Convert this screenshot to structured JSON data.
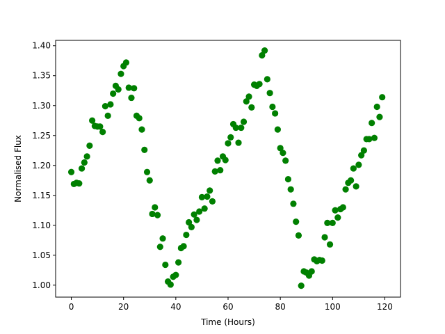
{
  "chart_data": {
    "type": "scatter",
    "xlabel": "Time (Hours)",
    "ylabel": "Normalised Flux",
    "xlim": [
      -6,
      126
    ],
    "ylim": [
      0.98,
      1.409
    ],
    "xticks": [
      0,
      20,
      40,
      60,
      80,
      100,
      120
    ],
    "yticks": [
      1.0,
      1.05,
      1.1,
      1.15,
      1.2,
      1.25,
      1.3,
      1.35,
      1.4
    ],
    "xtick_labels": [
      "0",
      "20",
      "40",
      "60",
      "80",
      "100",
      "120"
    ],
    "ytick_labels": [
      "1.00",
      "1.05",
      "1.10",
      "1.15",
      "1.20",
      "1.25",
      "1.30",
      "1.35",
      "1.40"
    ],
    "grid": false,
    "marker_color": "#008000",
    "series": [
      {
        "x": [
          0,
          1,
          2,
          3,
          4,
          5,
          6,
          7,
          8,
          9,
          10,
          11,
          12,
          13,
          14,
          15,
          16,
          17,
          18,
          19,
          20,
          21,
          22,
          23,
          24,
          25,
          26,
          27,
          28,
          29,
          30,
          31,
          32,
          33,
          34,
          35,
          36,
          37,
          38,
          39,
          40,
          41,
          42,
          43,
          44,
          45,
          46,
          47,
          48,
          49,
          50,
          51,
          52,
          53,
          54,
          55,
          56,
          57,
          58,
          59,
          60,
          61,
          62,
          63,
          64,
          65,
          66,
          67,
          68,
          69,
          70,
          71,
          72,
          73,
          74,
          75,
          76,
          77,
          78,
          79,
          80,
          81,
          82,
          83,
          84,
          85,
          86,
          87,
          88,
          89,
          90,
          91,
          92,
          93,
          94,
          95,
          96,
          97,
          98,
          99,
          100,
          101,
          102,
          103,
          104,
          105,
          106,
          107,
          108,
          109,
          110,
          111,
          112,
          113,
          114,
          115,
          116,
          117,
          118,
          119
        ],
        "y": [
          1.189,
          1.169,
          1.171,
          1.17,
          1.195,
          1.205,
          1.215,
          1.233,
          1.275,
          1.266,
          1.265,
          1.265,
          1.256,
          1.299,
          1.283,
          1.302,
          1.32,
          1.333,
          1.327,
          1.353,
          1.366,
          1.372,
          1.33,
          1.313,
          1.329,
          1.283,
          1.279,
          1.26,
          1.226,
          1.189,
          1.175,
          1.119,
          1.13,
          1.117,
          1.064,
          1.078,
          1.034,
          1.006,
          1.001,
          1.014,
          1.017,
          1.038,
          1.062,
          1.065,
          1.084,
          1.105,
          1.097,
          1.118,
          1.109,
          1.123,
          1.147,
          1.128,
          1.148,
          1.158,
          1.14,
          1.19,
          1.208,
          1.192,
          1.215,
          1.209,
          1.237,
          1.247,
          1.269,
          1.263,
          1.238,
          1.263,
          1.273,
          1.307,
          1.315,
          1.297,
          1.335,
          1.333,
          1.336,
          1.384,
          1.392,
          1.344,
          1.321,
          1.298,
          1.287,
          1.26,
          1.229,
          1.221,
          1.208,
          1.177,
          1.16,
          1.136,
          1.106,
          1.083,
          0.999,
          1.023,
          1.021,
          1.016,
          1.023,
          1.043,
          1.04,
          1.042,
          1.041,
          1.08,
          1.104,
          1.068,
          1.104,
          1.125,
          1.113,
          1.127,
          1.13,
          1.16,
          1.171,
          1.175,
          1.195,
          1.165,
          1.201,
          1.217,
          1.225,
          1.244,
          1.244,
          1.271,
          1.246,
          1.298,
          1.281,
          1.314
        ]
      }
    ]
  }
}
